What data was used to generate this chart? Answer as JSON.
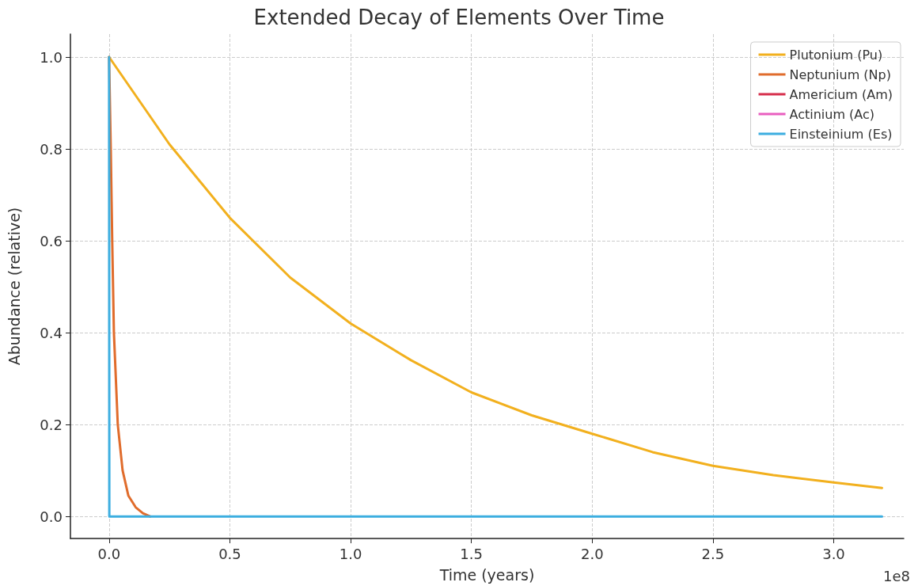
{
  "chart_data": {
    "type": "line",
    "title": "Extended Decay of Elements Over Time",
    "xlabel": "Time (years)",
    "ylabel": "Abundance (relative)",
    "annotations": [
      "1e8"
    ],
    "xlim": [
      -0.16,
      3.29
    ],
    "ylim": [
      -0.048,
      1.05
    ],
    "xticks": [
      {
        "value": 0,
        "label": "0.0"
      },
      {
        "value": 0.5,
        "label": "0.5"
      },
      {
        "value": 1,
        "label": "1.0"
      },
      {
        "value": 1.5,
        "label": "1.5"
      },
      {
        "value": 2,
        "label": "2.0"
      },
      {
        "value": 2.5,
        "label": "2.5"
      },
      {
        "value": 3,
        "label": "3.0"
      }
    ],
    "yticks": [
      {
        "value": 0,
        "label": "0.0"
      },
      {
        "value": 0.2,
        "label": "0.2"
      },
      {
        "value": 0.4,
        "label": "0.4"
      },
      {
        "value": 0.6,
        "label": "0.6"
      },
      {
        "value": 0.8,
        "label": "0.8"
      },
      {
        "value": 1,
        "label": "1.0"
      }
    ],
    "grid": true,
    "legend": "top right",
    "marker": "none",
    "line_style": "solid",
    "series": [
      {
        "name": "Plutonium (Pu)",
        "color": "#f2b01e",
        "x": [
          0,
          0.25,
          0.5,
          0.75,
          1,
          1.25,
          1.5,
          1.75,
          2,
          2.25,
          2.5,
          2.75,
          3,
          3.2
        ],
        "values": [
          1,
          0.81,
          0.65,
          0.52,
          0.42,
          0.34,
          0.27,
          0.22,
          0.18,
          0.14,
          0.11,
          0.09,
          0.074,
          0.062
        ]
      },
      {
        "name": "Neptunium (Np)",
        "color": "#e06c2c",
        "x": [
          0,
          0.007,
          0.013,
          0.02,
          0.036,
          0.056,
          0.08,
          0.11,
          0.14,
          0.17
        ],
        "values": [
          1,
          0.8,
          0.6,
          0.4,
          0.2,
          0.1,
          0.045,
          0.02,
          0.007,
          0
        ]
      },
      {
        "name": "Americium (Am)",
        "color": "#d62d4a",
        "values": [
          null
        ]
      },
      {
        "name": "Actinium (Ac)",
        "color": "#e95fc0",
        "values": [
          null
        ]
      },
      {
        "name": "Einsteinium (Es)",
        "color": "#3daee0",
        "x": [
          0,
          0.001,
          3.2
        ],
        "values": [
          1,
          0,
          0
        ]
      }
    ]
  }
}
